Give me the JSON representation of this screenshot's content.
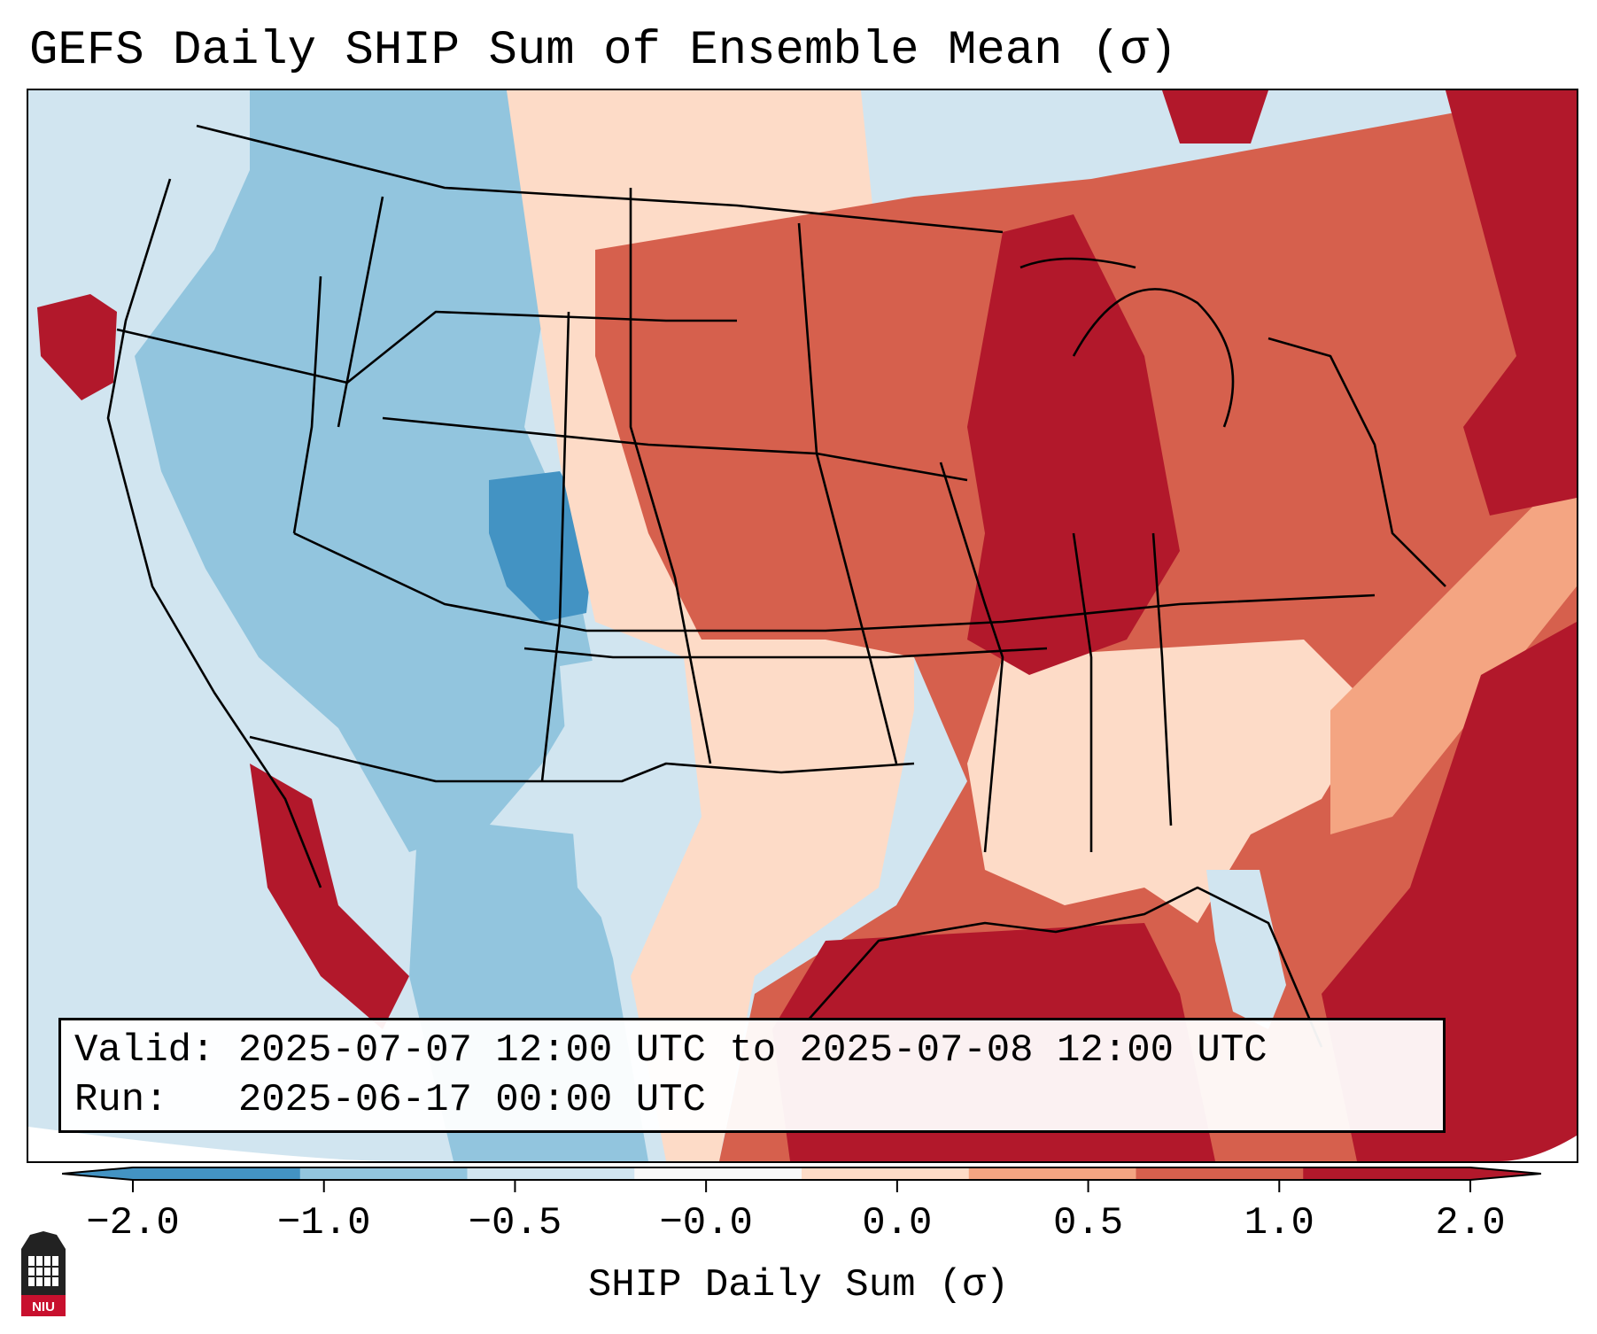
{
  "title": "GEFS Daily SHIP Sum of Ensemble Mean (σ)",
  "info": {
    "valid_label": "Valid:",
    "valid_text": "2025-07-07 12:00 UTC to 2025-07-08 12:00 UTC",
    "run_label": "Run:",
    "run_text": "2025-06-17 00:00 UTC"
  },
  "colorbar": {
    "label": "SHIP Daily Sum (σ)",
    "ticks": [
      "−2.0",
      "−1.0",
      "−0.5",
      "−0.0",
      "0.0",
      "0.5",
      "1.0",
      "2.0"
    ],
    "colors": [
      "#4393c3",
      "#92c5de",
      "#d1e5f0",
      "#f7f7f7",
      "#fddbc7",
      "#f4a582",
      "#d6604d",
      "#b2182b"
    ],
    "extend": "both"
  },
  "logo_text": "NIU"
}
